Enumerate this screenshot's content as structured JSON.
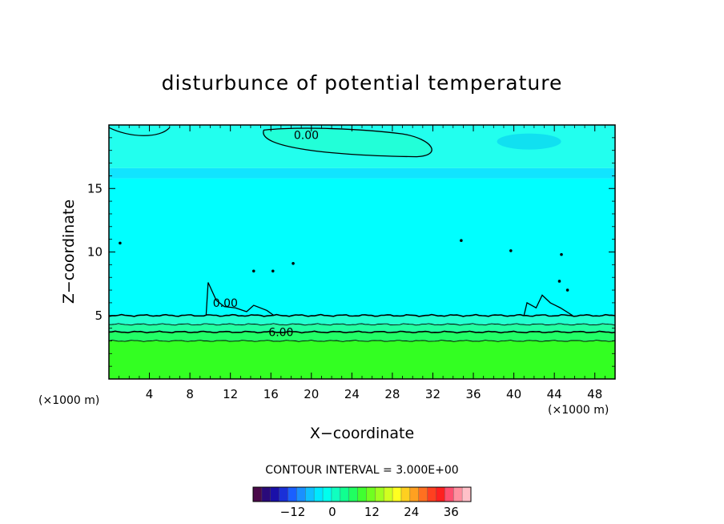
{
  "chart_data": {
    "type": "contour",
    "title": "disturbunce of potential temperature",
    "xlabel": "X−coordinate",
    "ylabel": "Z−coordinate",
    "x_unit_left": "(×1000 m)",
    "x_unit_right": "(×1000 m)",
    "xlim": [
      0,
      50
    ],
    "ylim": [
      0,
      20
    ],
    "x_ticks": [
      4,
      8,
      12,
      16,
      20,
      24,
      28,
      32,
      36,
      40,
      44,
      48
    ],
    "x_tick_labels": [
      "4",
      "8",
      "12",
      "16",
      "20",
      "24",
      "28",
      "32",
      "36",
      "40",
      "44",
      "48"
    ],
    "y_ticks": [
      5,
      10,
      15
    ],
    "y_tick_labels": [
      "5",
      "10",
      "15"
    ],
    "contour_interval_text": "CONTOUR INTERVAL = 3.000E+00",
    "contour_labels": [
      {
        "text": "0.00",
        "x": 19.5,
        "z": 19.2
      },
      {
        "text": "0.00",
        "x": 11.5,
        "z": 6.0
      },
      {
        "text": "6.00",
        "x": 17.0,
        "z": 3.7
      }
    ],
    "layers": [
      {
        "zmin": 0,
        "zmax": 3.0,
        "value": 9,
        "color": "#33ff22"
      },
      {
        "zmin": 3.0,
        "zmax": 3.7,
        "value": 6,
        "color": "#22ff66"
      },
      {
        "zmin": 3.7,
        "zmax": 4.3,
        "value": 5,
        "color": "#22ffa0"
      },
      {
        "zmin": 4.3,
        "zmax": 5.0,
        "value": 3,
        "color": "#22ffd0"
      },
      {
        "zmin": 5.0,
        "zmax": 15.8,
        "value": 0,
        "color": "#00ffff"
      },
      {
        "zmin": 15.8,
        "zmax": 16.6,
        "value": -2,
        "color": "#11e4ff"
      },
      {
        "zmin": 16.6,
        "zmax": 20,
        "value": -1,
        "color": "#22ffee"
      }
    ],
    "colorbar": {
      "ticks": [
        -12,
        0,
        12,
        24,
        36
      ],
      "tick_labels": [
        "−12",
        "0",
        "12",
        "24",
        "36"
      ],
      "vmin": -24,
      "vmax": 42,
      "colors": [
        "#4a0a4a",
        "#2a0a7a",
        "#1a10a8",
        "#1a30d8",
        "#1a60ff",
        "#1a90ff",
        "#10c0ff",
        "#00e8ff",
        "#00ffee",
        "#10ffc0",
        "#10ff90",
        "#20ff60",
        "#40ff30",
        "#70ff20",
        "#a0ff20",
        "#d0ff20",
        "#ffff20",
        "#ffd020",
        "#ffa020",
        "#ff7020",
        "#ff4020",
        "#ff2020",
        "#ff5070",
        "#ff90a0",
        "#ffc0c8"
      ]
    }
  }
}
